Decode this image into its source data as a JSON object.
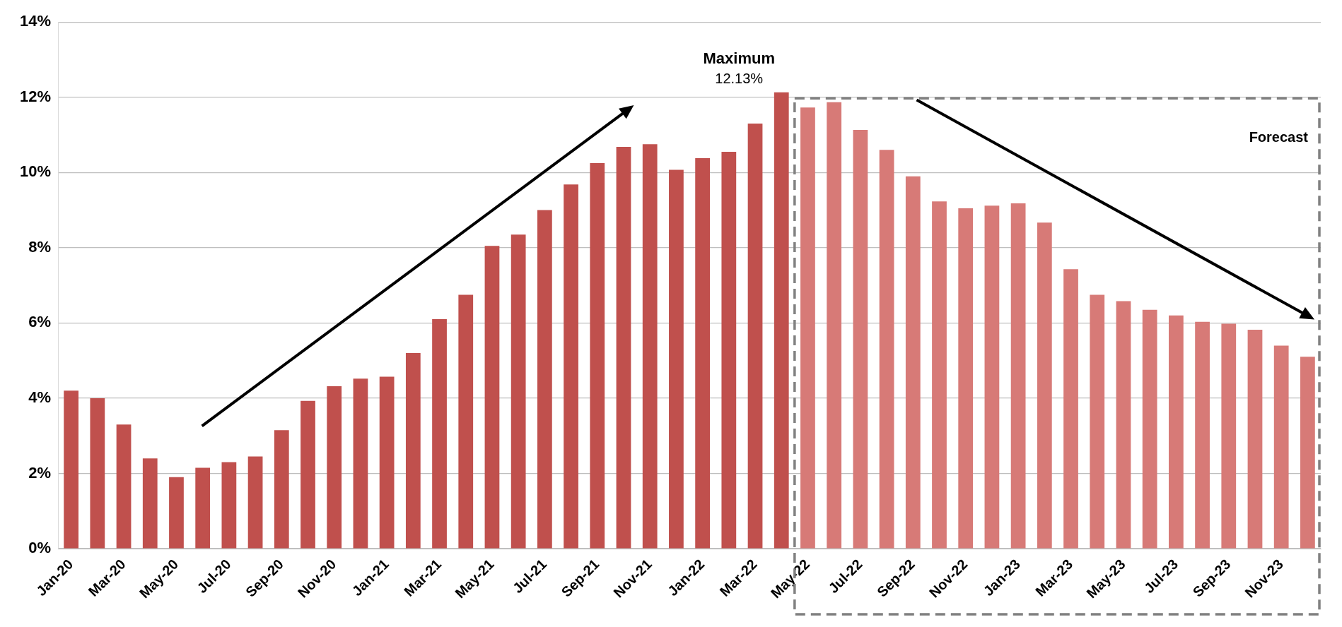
{
  "chart_data": {
    "type": "bar",
    "stacked": true,
    "grid": "y",
    "categories": [
      "Jan-20",
      null,
      "Mar-20",
      null,
      "May-20",
      null,
      "Jul-20",
      null,
      "Sep-20",
      null,
      "Nov-20",
      null,
      "Jan-21",
      null,
      "Mar-21",
      null,
      "May-21",
      null,
      "Jul-21",
      null,
      "Sep-21",
      null,
      "Nov-21",
      null,
      "Jan-22",
      null,
      "Mar-22",
      null,
      "May-22",
      null,
      "Jul-22",
      null,
      "Sep-22",
      null,
      "Nov-22",
      null,
      "Jan-23",
      null,
      "Mar-23",
      null,
      "May-23",
      null,
      "Jul-23",
      null,
      "Sep-23",
      null,
      "Nov-23",
      null
    ],
    "series": [
      {
        "color": "#c0504d",
        "values": [
          4.2,
          4.0,
          3.3,
          2.4,
          1.9,
          2.15,
          2.3,
          2.45,
          3.15,
          3.93,
          4.32,
          4.52,
          4.57,
          5.2,
          6.1,
          6.75,
          8.05,
          8.35,
          9.0,
          9.68,
          10.25,
          10.68,
          10.75,
          10.07,
          10.38,
          10.55,
          11.3,
          12.13,
          null,
          null,
          null,
          null,
          null,
          null,
          null,
          null,
          null,
          null,
          null,
          null,
          null,
          null,
          null,
          null,
          null,
          null,
          null,
          null
        ]
      },
      {
        "color": "#d77a77",
        "values": [
          null,
          null,
          null,
          null,
          null,
          null,
          null,
          null,
          null,
          null,
          null,
          null,
          null,
          null,
          null,
          null,
          null,
          null,
          null,
          null,
          null,
          null,
          null,
          null,
          null,
          null,
          null,
          null,
          11.73,
          11.87,
          11.13,
          10.6,
          9.9,
          9.23,
          9.05,
          9.12,
          9.18,
          8.67,
          7.43,
          6.75,
          6.58,
          6.35,
          6.2,
          6.03,
          5.98,
          5.82,
          5.4,
          5.1
        ]
      }
    ],
    "ylim": [
      0,
      14
    ],
    "yticks": [
      {
        "value": 0,
        "label": "0%"
      },
      {
        "value": 2,
        "label": "2%"
      },
      {
        "value": 4,
        "label": "4%"
      },
      {
        "value": 6,
        "label": "6%"
      },
      {
        "value": 8,
        "label": "8%"
      },
      {
        "value": 10,
        "label": "10%"
      },
      {
        "value": 12,
        "label": "12%"
      },
      {
        "value": 14,
        "label": "14%"
      }
    ],
    "annotations": [
      "Maximum\n12.13%",
      "Forecast"
    ]
  }
}
